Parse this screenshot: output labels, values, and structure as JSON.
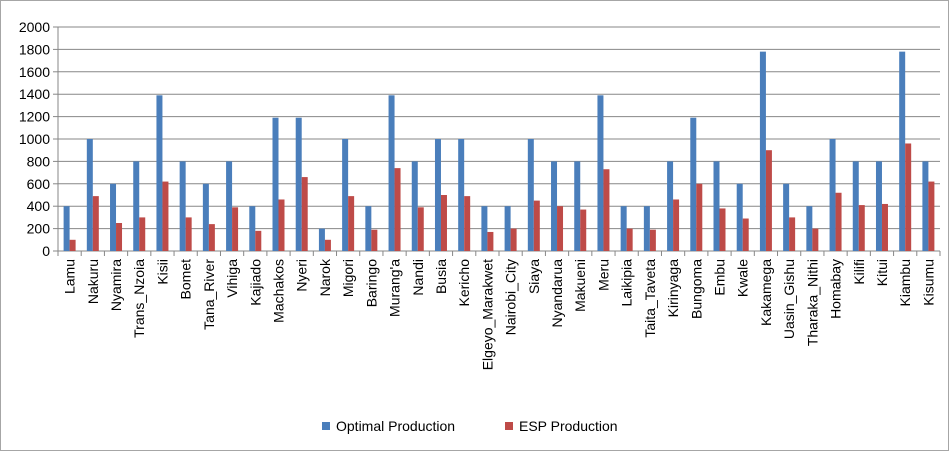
{
  "chart_data": {
    "type": "bar",
    "categories": [
      "Lamu",
      "Nakuru",
      "Nyamira",
      "Trans_Nzoia",
      "Kisii",
      "Bomet",
      "Tana_River",
      "Vihiga",
      "Kajiado",
      "Machakos",
      "Nyeri",
      "Narok",
      "Migori",
      "Baringo",
      "Murang'a",
      "Nandi",
      "Busia",
      "Kericho",
      "Elgeyo_Marakwet",
      "Nairobi_City",
      "Siaya",
      "Nyandarua",
      "Makueni",
      "Meru",
      "Laikipia",
      "Taita_Taveta",
      "Kirinyaga",
      "Bungoma",
      "Embu",
      "Kwale",
      "Kakamega",
      "Uasin_Gishu",
      "Tharaka_Nithi",
      "Homabay",
      "Kilifi",
      "Kitui",
      "Kiambu",
      "Kisumu"
    ],
    "series": [
      {
        "name": "Optimal Production",
        "color": "#4a7ebb",
        "values": [
          400,
          1000,
          600,
          800,
          1390,
          800,
          600,
          800,
          400,
          1190,
          1190,
          200,
          1000,
          400,
          1390,
          800,
          1000,
          1000,
          400,
          400,
          1000,
          800,
          800,
          1390,
          400,
          400,
          800,
          1190,
          800,
          600,
          1780,
          600,
          400,
          1000,
          800,
          800,
          1780,
          800
        ]
      },
      {
        "name": "ESP Production",
        "color": "#be4b48",
        "values": [
          100,
          490,
          250,
          300,
          620,
          300,
          240,
          390,
          180,
          460,
          660,
          100,
          490,
          190,
          740,
          390,
          500,
          490,
          170,
          200,
          450,
          400,
          370,
          730,
          200,
          190,
          460,
          600,
          380,
          290,
          900,
          300,
          200,
          520,
          410,
          420,
          960,
          620
        ]
      }
    ],
    "ylim": [
      0,
      2000
    ],
    "yticks": [
      "0",
      "200",
      "400",
      "600",
      "800",
      "1000",
      "1200",
      "1400",
      "1600",
      "1800",
      "2000"
    ],
    "grid": true,
    "legend_position": "bottom"
  }
}
